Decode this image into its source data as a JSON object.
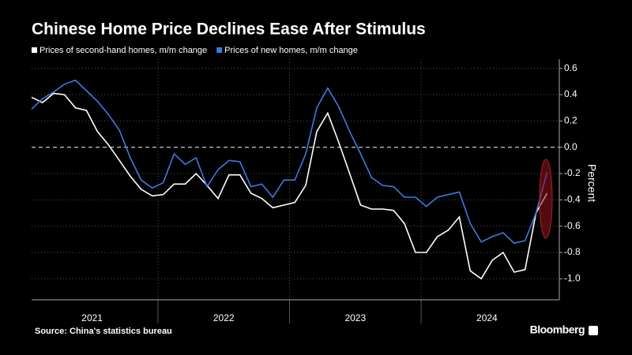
{
  "chart_data": {
    "type": "line",
    "title": "Chinese Home Price Declines Ease After Stimulus",
    "y_label": "Percent",
    "source": "Source: China's statistics bureau",
    "brand": "Bloomberg",
    "x": [
      2021.04,
      2021.123,
      2021.207,
      2021.29,
      2021.373,
      2021.457,
      2021.54,
      2021.623,
      2021.707,
      2021.79,
      2021.873,
      2021.957,
      2022.04,
      2022.123,
      2022.207,
      2022.29,
      2022.373,
      2022.457,
      2022.54,
      2022.623,
      2022.707,
      2022.79,
      2022.873,
      2022.957,
      2023.04,
      2023.123,
      2023.207,
      2023.29,
      2023.373,
      2023.457,
      2023.54,
      2023.623,
      2023.707,
      2023.79,
      2023.873,
      2023.957,
      2024.04,
      2024.123,
      2024.207,
      2024.29,
      2024.373,
      2024.457,
      2024.54,
      2024.623,
      2024.707,
      2024.79,
      2024.873,
      2024.957
    ],
    "series": [
      {
        "name": "Prices of second-hand homes, m/m change",
        "color": "#ffffff",
        "values": [
          0.38,
          0.34,
          0.41,
          0.4,
          0.3,
          0.28,
          0.12,
          0.02,
          -0.1,
          -0.22,
          -0.32,
          -0.37,
          -0.36,
          -0.28,
          -0.28,
          -0.2,
          -0.29,
          -0.39,
          -0.21,
          -0.21,
          -0.35,
          -0.39,
          -0.46,
          -0.44,
          -0.42,
          -0.29,
          0.12,
          0.26,
          0.04,
          -0.2,
          -0.44,
          -0.47,
          -0.47,
          -0.48,
          -0.58,
          -0.8,
          -0.8,
          -0.68,
          -0.63,
          -0.53,
          -0.94,
          -1.0,
          -0.86,
          -0.8,
          -0.95,
          -0.93,
          -0.5,
          -0.35
        ]
      },
      {
        "name": "Prices of new homes, m/m change",
        "color": "#3b7be0",
        "values": [
          0.29,
          0.37,
          0.42,
          0.48,
          0.51,
          0.43,
          0.35,
          0.25,
          0.13,
          -0.08,
          -0.25,
          -0.31,
          -0.27,
          -0.05,
          -0.13,
          -0.08,
          -0.3,
          -0.17,
          -0.1,
          -0.11,
          -0.3,
          -0.28,
          -0.38,
          -0.25,
          -0.25,
          -0.05,
          0.3,
          0.45,
          0.31,
          0.12,
          -0.05,
          -0.23,
          -0.29,
          -0.3,
          -0.38,
          -0.38,
          -0.45,
          -0.38,
          -0.36,
          -0.34,
          -0.58,
          -0.72,
          -0.68,
          -0.65,
          -0.73,
          -0.71,
          -0.5,
          -0.19
        ]
      }
    ],
    "xlim": [
      2021.04,
      2025.05
    ],
    "xticks": [
      {
        "value": 2021.5,
        "label": "2021"
      },
      {
        "value": 2022.5,
        "label": "2022"
      },
      {
        "value": 2023.5,
        "label": "2023"
      },
      {
        "value": 2024.5,
        "label": "2024"
      }
    ],
    "ylim": [
      -1.16,
      0.67
    ],
    "yticks": [
      0.6,
      0.4,
      0.2,
      {
        "value": 0,
        "label": "0.0"
      },
      -0.2,
      -0.4,
      -0.6,
      -0.8,
      {
        "value": -1.0,
        "label": "-1.0"
      }
    ],
    "grid": true
  }
}
